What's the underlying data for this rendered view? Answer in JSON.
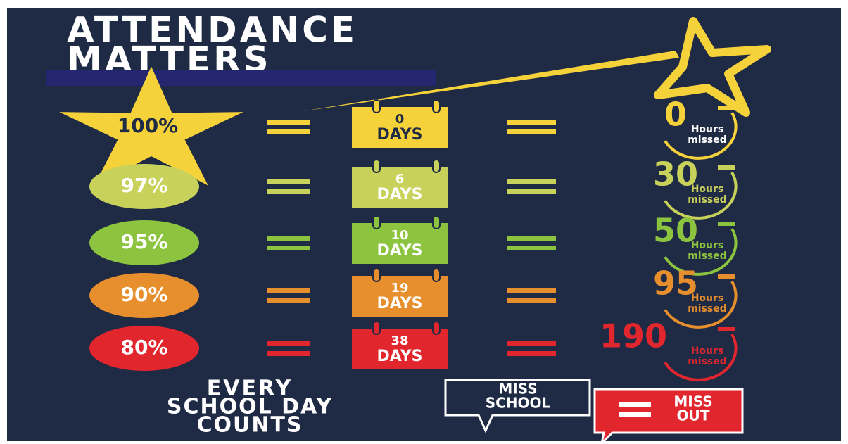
{
  "header": {
    "title_lines": [
      "ATTENDANCE",
      "MATTERS"
    ]
  },
  "rows": [
    {
      "percent": "100%",
      "days": "0",
      "days_label": "DAYS",
      "hours": "0",
      "hours_label": [
        "Hours",
        "missed"
      ],
      "color": "#f6d23a"
    },
    {
      "percent": "97%",
      "days": "6",
      "days_label": "DAYS",
      "hours": "30",
      "hours_label": [
        "Hours",
        "missed"
      ],
      "color": "#c8d25a"
    },
    {
      "percent": "95%",
      "days": "10",
      "days_label": "DAYS",
      "hours": "50",
      "hours_label": [
        "Hours",
        "missed"
      ],
      "color": "#8cc43f"
    },
    {
      "percent": "90%",
      "days": "19",
      "days_label": "DAYS",
      "hours": "95",
      "hours_label": [
        "Hours",
        "missed"
      ],
      "color": "#e78f2c"
    },
    {
      "percent": "80%",
      "days": "38",
      "days_label": "DAYS",
      "hours": "190",
      "hours_label": [
        "Hours",
        "missed"
      ],
      "color": "#e1262d"
    }
  ],
  "footer": {
    "slogan_lines": [
      "EVERY",
      "SCHOOL DAY",
      "COUNTS"
    ],
    "bubble_left": [
      "MISS",
      "SCHOOL"
    ],
    "bubble_right": [
      "MISS",
      "OUT"
    ]
  }
}
